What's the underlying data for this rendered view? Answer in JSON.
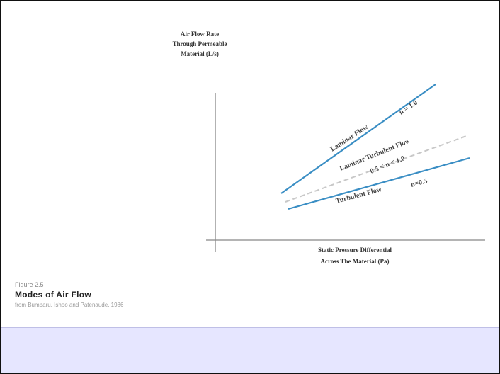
{
  "diagram": {
    "y_axis_label": "Air Flow Rate Through Permeable Material (L/s)",
    "x_axis_label_line1": "Static Pressure Differential",
    "x_axis_label_line2": "Across The Material (Pa)",
    "lines": [
      {
        "name": "Laminar Flow",
        "exponent_label": "n = 1.0",
        "style": "solid",
        "color": "#3a8ec4"
      },
      {
        "name": "Laminar Turbulent Flow",
        "exponent_label": "0.5 < n < 1.0",
        "style": "dashed",
        "color": "#c8c8c8"
      },
      {
        "name": "Turbulent Flow",
        "exponent_label": "n=0.5",
        "style": "solid",
        "color": "#3a8ec4"
      }
    ]
  },
  "caption": {
    "figure_number": "Figure 2.5",
    "title": "Modes of Air Flow",
    "source": "from Bumbaru, Ishoo and Patenaude, 1986"
  },
  "colors": {
    "line_blue": "#3a8ec4",
    "dashed_grey": "#c8c8c8",
    "footer_band": "#e6e6ff"
  }
}
